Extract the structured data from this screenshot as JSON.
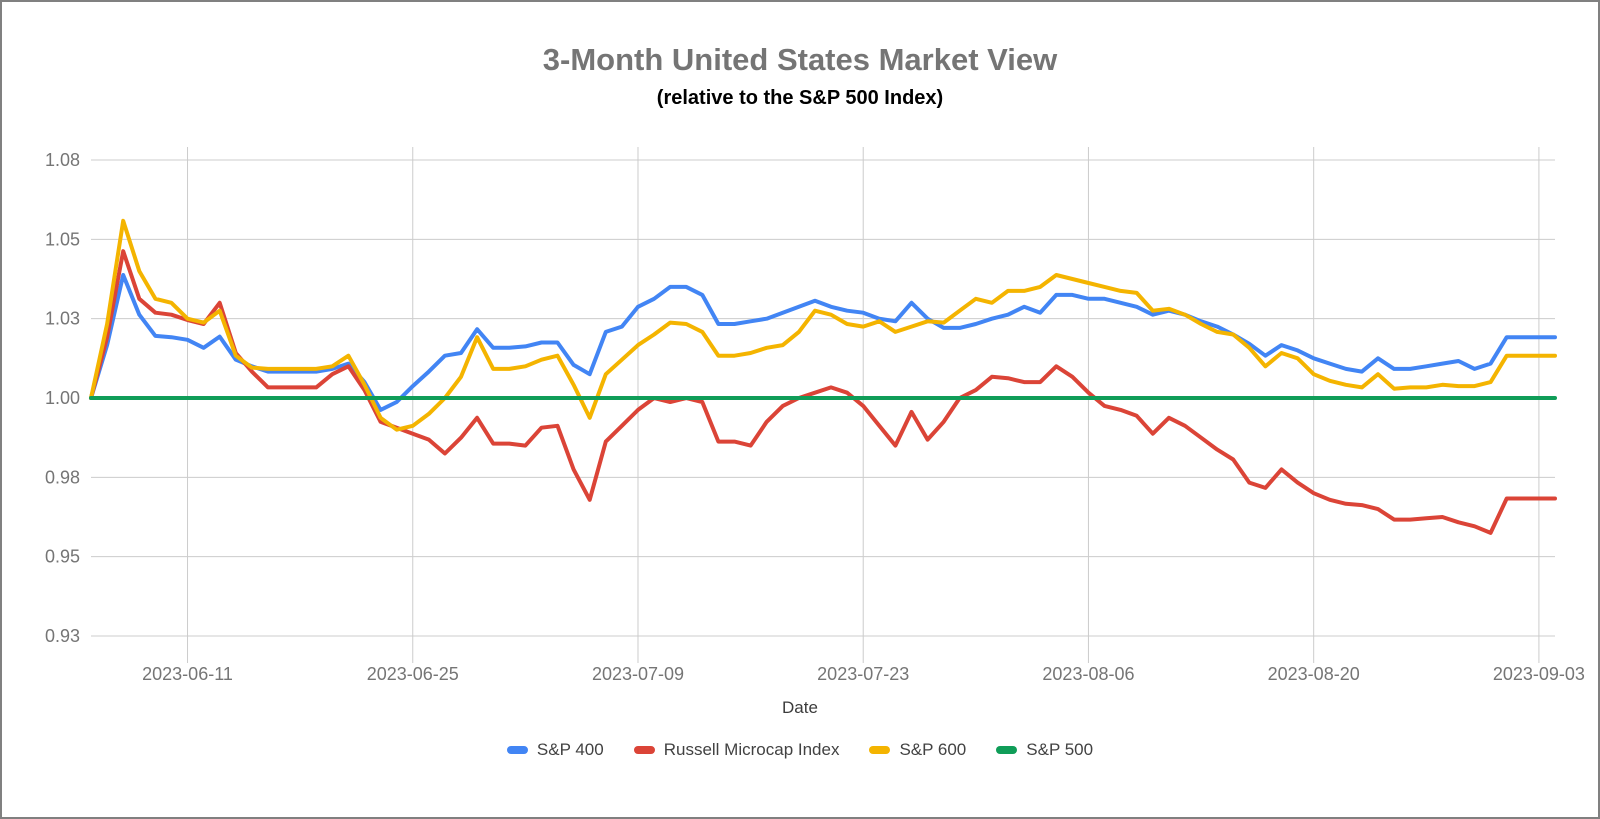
{
  "chart": {
    "border_color": "#808080",
    "grid_color": "#cccccc",
    "tick_text_color": "#757575",
    "title_color": "#757575",
    "subtitle_color": "#000000"
  },
  "chart_data": {
    "type": "line",
    "title": "3-Month United States Market View",
    "subtitle": "(relative to the S&P 500 Index)",
    "xlabel": "Date",
    "ylabel": "",
    "grid": true,
    "legend_position": "bottom",
    "ylim": [
      0.93,
      1.08
    ],
    "y_ticks": [
      1.08,
      1.05,
      1.03,
      1.0,
      0.98,
      0.95,
      0.93
    ],
    "y_tick_labels": [
      "1.08",
      "1.05",
      "1.03",
      "1.00",
      "0.98",
      "0.95",
      "0.93"
    ],
    "x_tick_labels": [
      "2023-06-11",
      "2023-06-25",
      "2023-07-09",
      "2023-07-23",
      "2023-08-06",
      "2023-08-20",
      "2023-09-03"
    ],
    "x": [
      "2023-06-05",
      "2023-06-06",
      "2023-06-07",
      "2023-06-08",
      "2023-06-09",
      "2023-06-10",
      "2023-06-11",
      "2023-06-12",
      "2023-06-13",
      "2023-06-14",
      "2023-06-15",
      "2023-06-16",
      "2023-06-17",
      "2023-06-18",
      "2023-06-19",
      "2023-06-20",
      "2023-06-21",
      "2023-06-22",
      "2023-06-23",
      "2023-06-24",
      "2023-06-25",
      "2023-06-26",
      "2023-06-27",
      "2023-06-28",
      "2023-06-29",
      "2023-06-30",
      "2023-07-01",
      "2023-07-02",
      "2023-07-03",
      "2023-07-04",
      "2023-07-05",
      "2023-07-06",
      "2023-07-07",
      "2023-07-08",
      "2023-07-09",
      "2023-07-10",
      "2023-07-11",
      "2023-07-12",
      "2023-07-13",
      "2023-07-14",
      "2023-07-15",
      "2023-07-16",
      "2023-07-17",
      "2023-07-18",
      "2023-07-19",
      "2023-07-20",
      "2023-07-21",
      "2023-07-22",
      "2023-07-23",
      "2023-07-24",
      "2023-07-25",
      "2023-07-26",
      "2023-07-27",
      "2023-07-28",
      "2023-07-29",
      "2023-07-30",
      "2023-07-31",
      "2023-08-01",
      "2023-08-02",
      "2023-08-03",
      "2023-08-04",
      "2023-08-05",
      "2023-08-06",
      "2023-08-07",
      "2023-08-08",
      "2023-08-09",
      "2023-08-10",
      "2023-08-11",
      "2023-08-12",
      "2023-08-13",
      "2023-08-14",
      "2023-08-15",
      "2023-08-16",
      "2023-08-17",
      "2023-08-18",
      "2023-08-19",
      "2023-08-20",
      "2023-08-21",
      "2023-08-22",
      "2023-08-23",
      "2023-08-24",
      "2023-08-25",
      "2023-08-26",
      "2023-08-27",
      "2023-08-28",
      "2023-08-29",
      "2023-08-30",
      "2023-08-31",
      "2023-09-01",
      "2023-09-02",
      "2023-09-03",
      "2023-09-04"
    ],
    "series": [
      {
        "name": "S&P 400",
        "color": "#4285F4",
        "values": [
          1.0,
          1.02,
          1.041,
          1.031,
          1.0235,
          1.023,
          1.022,
          1.019,
          1.0232,
          1.0145,
          1.012,
          1.01,
          1.01,
          1.01,
          1.01,
          1.011,
          1.013,
          1.006,
          0.997,
          0.999,
          1.0045,
          1.01,
          1.016,
          1.017,
          1.026,
          1.019,
          1.019,
          1.0195,
          1.021,
          1.021,
          1.0125,
          1.009,
          1.025,
          1.027,
          1.033,
          1.035,
          1.038,
          1.038,
          1.036,
          1.028,
          1.028,
          1.029,
          1.03,
          1.0315,
          1.033,
          1.0345,
          1.033,
          1.032,
          1.0315,
          1.03,
          1.029,
          1.034,
          1.03,
          1.0265,
          1.0265,
          1.028,
          1.03,
          1.031,
          1.033,
          1.0315,
          1.036,
          1.036,
          1.035,
          1.035,
          1.034,
          1.033,
          1.031,
          1.032,
          1.031,
          1.029,
          1.027,
          1.024,
          1.0205,
          1.016,
          1.02,
          1.018,
          1.015,
          1.013,
          1.011,
          1.01,
          1.015,
          1.011,
          1.011,
          1.012,
          1.013,
          1.014,
          1.011,
          1.013,
          1.023,
          1.023,
          1.023,
          1.023
        ]
      },
      {
        "name": "Russell Microcap Index",
        "color": "#DB4437",
        "values": [
          1.0,
          1.023,
          1.047,
          1.035,
          1.0315,
          1.031,
          1.0295,
          1.028,
          1.034,
          1.017,
          1.01,
          1.004,
          1.004,
          1.004,
          1.004,
          1.009,
          1.012,
          1.003,
          0.994,
          0.9925,
          0.991,
          0.9895,
          0.986,
          0.99,
          0.995,
          0.9885,
          0.9885,
          0.988,
          0.9925,
          0.993,
          0.982,
          0.9715,
          0.989,
          0.993,
          0.997,
          1.0,
          0.999,
          1.0,
          0.999,
          0.989,
          0.989,
          0.988,
          0.994,
          0.998,
          1.0,
          1.002,
          1.004,
          1.002,
          0.998,
          0.993,
          0.988,
          0.9965,
          0.9895,
          0.994,
          1.0,
          1.003,
          1.008,
          1.0075,
          1.006,
          1.006,
          1.012,
          1.008,
          1.002,
          0.998,
          0.997,
          0.9955,
          0.991,
          0.995,
          0.993,
          0.99,
          0.987,
          0.9845,
          0.978,
          0.976,
          0.982,
          0.978,
          0.974,
          0.9715,
          0.97,
          0.9695,
          0.968,
          0.964,
          0.964,
          0.9645,
          0.965,
          0.963,
          0.9615,
          0.959,
          0.972,
          0.972,
          0.972,
          0.972
        ]
      },
      {
        "name": "S&P 600",
        "color": "#F4B400",
        "values": [
          1.0,
          1.028,
          1.057,
          1.042,
          1.035,
          1.034,
          1.03,
          1.0285,
          1.032,
          1.016,
          1.0115,
          1.011,
          1.011,
          1.011,
          1.011,
          1.012,
          1.016,
          1.005,
          0.995,
          0.992,
          0.993,
          0.996,
          1.0,
          1.008,
          1.023,
          1.011,
          1.011,
          1.012,
          1.0145,
          1.016,
          1.005,
          0.995,
          1.009,
          1.0145,
          1.02,
          1.024,
          1.0285,
          1.028,
          1.025,
          1.016,
          1.016,
          1.017,
          1.019,
          1.02,
          1.025,
          1.032,
          1.031,
          1.028,
          1.027,
          1.029,
          1.025,
          1.027,
          1.029,
          1.0285,
          1.032,
          1.035,
          1.034,
          1.037,
          1.037,
          1.038,
          1.041,
          1.04,
          1.039,
          1.038,
          1.037,
          1.0365,
          1.032,
          1.0325,
          1.031,
          1.028,
          1.025,
          1.024,
          1.019,
          1.012,
          1.017,
          1.015,
          1.009,
          1.0065,
          1.005,
          1.004,
          1.009,
          1.0035,
          1.004,
          1.004,
          1.005,
          1.0045,
          1.0045,
          1.006,
          1.016,
          1.016,
          1.016,
          1.016
        ]
      },
      {
        "name": "S&P 500",
        "color": "#0F9D58",
        "values": [
          1.0,
          1.0,
          1.0,
          1.0,
          1.0,
          1.0,
          1.0,
          1.0,
          1.0,
          1.0,
          1.0,
          1.0,
          1.0,
          1.0,
          1.0,
          1.0,
          1.0,
          1.0,
          1.0,
          1.0,
          1.0,
          1.0,
          1.0,
          1.0,
          1.0,
          1.0,
          1.0,
          1.0,
          1.0,
          1.0,
          1.0,
          1.0,
          1.0,
          1.0,
          1.0,
          1.0,
          1.0,
          1.0,
          1.0,
          1.0,
          1.0,
          1.0,
          1.0,
          1.0,
          1.0,
          1.0,
          1.0,
          1.0,
          1.0,
          1.0,
          1.0,
          1.0,
          1.0,
          1.0,
          1.0,
          1.0,
          1.0,
          1.0,
          1.0,
          1.0,
          1.0,
          1.0,
          1.0,
          1.0,
          1.0,
          1.0,
          1.0,
          1.0,
          1.0,
          1.0,
          1.0,
          1.0,
          1.0,
          1.0,
          1.0,
          1.0,
          1.0,
          1.0,
          1.0,
          1.0,
          1.0,
          1.0,
          1.0,
          1.0,
          1.0,
          1.0,
          1.0,
          1.0,
          1.0,
          1.0,
          1.0,
          1.0
        ]
      }
    ]
  }
}
